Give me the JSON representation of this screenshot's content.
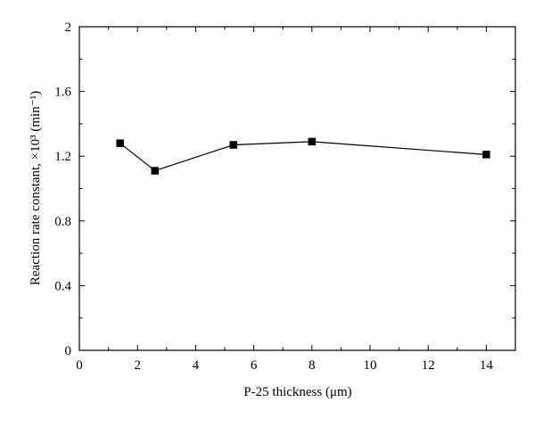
{
  "chart_data": {
    "type": "line",
    "title": "",
    "xlabel": "P-25 thickness (μm)",
    "ylabel": "Reaction rate constant, ×10³ (min⁻¹)",
    "xlim": [
      0,
      15
    ],
    "ylim": [
      0,
      2
    ],
    "xticks": [
      0,
      2,
      4,
      6,
      8,
      10,
      12,
      14
    ],
    "xtick_labels": [
      "0",
      "2",
      "4",
      "6",
      "8",
      "10",
      "12",
      "14"
    ],
    "yticks": [
      0,
      0.4,
      0.8,
      1.2,
      1.6,
      2
    ],
    "ytick_labels": [
      "0",
      "0.4",
      "0.8",
      "1.2",
      "1.6",
      "2"
    ],
    "grid": false,
    "legend": "none",
    "marker": "square",
    "color": "#000000",
    "series": [
      {
        "x": [
          1.4,
          2.6,
          5.3,
          8.0,
          14.0
        ],
        "y": [
          1.28,
          1.11,
          1.27,
          1.29,
          1.21
        ]
      }
    ]
  }
}
